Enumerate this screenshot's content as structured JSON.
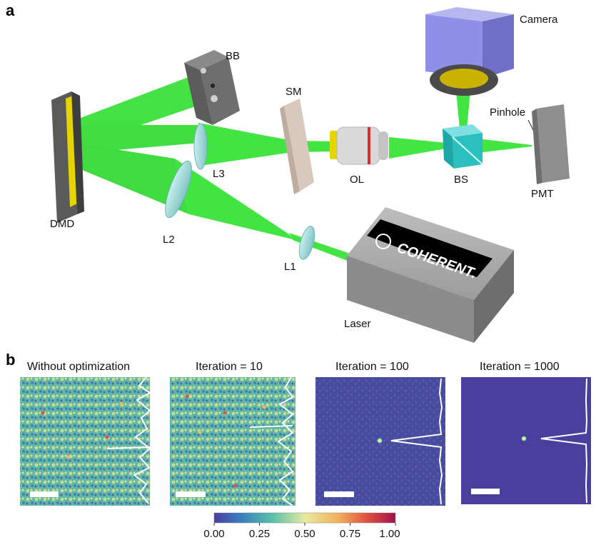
{
  "panel_a": {
    "letter": "a",
    "labels": {
      "camera": "Camera",
      "bb": "BB",
      "sm": "SM",
      "pinhole": "Pinhole",
      "l3": "L3",
      "ol": "OL",
      "bs": "BS",
      "pmt": "PMT",
      "dmd": "DMD",
      "l2": "L2",
      "l1": "L1",
      "laser": "Laser",
      "brand": "COHERENT."
    },
    "colors": {
      "beam": "#22e022",
      "dmd_frame": "#5a5a5a",
      "dmd_mirror": "#e5d400",
      "lens": "#9fd8d8",
      "camera_body": "#8f8fe8",
      "bs": "#2bbfbf",
      "laser_body": "#9a9a9a"
    }
  },
  "panel_b": {
    "letter": "b",
    "panels": [
      {
        "title": "Without optimization"
      },
      {
        "title": "Iteration = 10"
      },
      {
        "title": "Iteration = 100"
      },
      {
        "title": "Iteration = 1000"
      }
    ],
    "colorbar": {
      "ticks": [
        "0.00",
        "0.25",
        "0.50",
        "0.75",
        "1.00"
      ],
      "colors": [
        "#4b3f9e",
        "#3a7fc0",
        "#58c0a8",
        "#e8eaa0",
        "#f2b35e",
        "#e0523f",
        "#a0104e"
      ]
    }
  }
}
